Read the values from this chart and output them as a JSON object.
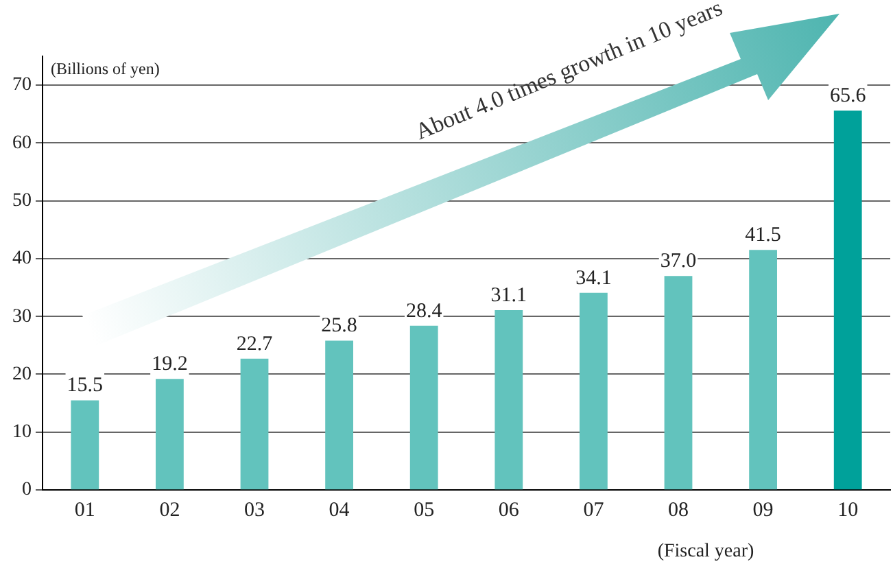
{
  "chart_data": {
    "type": "bar",
    "ylabel": "(Billions of yen)",
    "xlabel": "(Fiscal year)",
    "categories": [
      "01",
      "02",
      "03",
      "04",
      "05",
      "06",
      "07",
      "08",
      "09",
      "10"
    ],
    "values": [
      15.5,
      19.2,
      22.7,
      25.8,
      28.4,
      31.1,
      34.1,
      37.0,
      41.5,
      65.6
    ],
    "colors": [
      "#62c3bd",
      "#62c3bd",
      "#62c3bd",
      "#62c3bd",
      "#62c3bd",
      "#62c3bd",
      "#62c3bd",
      "#62c3bd",
      "#62c3bd",
      "#00a19a"
    ],
    "value_labels": [
      "15.5",
      "19.2",
      "22.7",
      "25.8",
      "28.4",
      "31.1",
      "34.1",
      "37.0",
      "41.5",
      "65.6"
    ],
    "ylim": [
      0,
      75
    ],
    "yticks": [
      0,
      10,
      20,
      30,
      40,
      50,
      60,
      70
    ],
    "grid": "y",
    "legend": false,
    "annotations": [
      "About 4.0 times growth in 10 years"
    ]
  }
}
